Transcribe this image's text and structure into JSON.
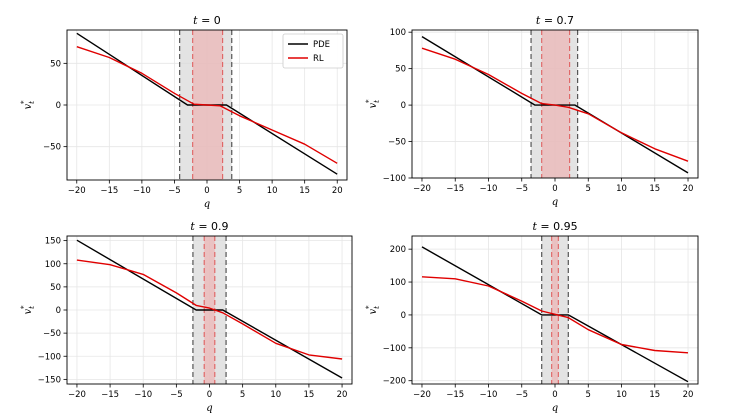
{
  "chart_data": [
    {
      "type": "line",
      "title": "t = 0",
      "xlabel": "q",
      "ylabel": "v_t*",
      "xlim": [
        -21.5,
        21.5
      ],
      "ylim": [
        -90,
        90
      ],
      "xticks": [
        -20,
        -15,
        -10,
        -5,
        0,
        5,
        10,
        15,
        20
      ],
      "yticks": [
        -50,
        0,
        50
      ],
      "grid": true,
      "legend": {
        "placement": "top-right",
        "entries": [
          "PDE",
          "RL"
        ]
      },
      "pde_band": [
        -4.2,
        3.8
      ],
      "rl_band": [
        -2.2,
        2.4
      ],
      "series": [
        {
          "name": "PDE",
          "color": "#000000",
          "x": [
            -20,
            -3,
            3,
            20
          ],
          "y": [
            86,
            0,
            0,
            -83
          ]
        },
        {
          "name": "RL",
          "color": "#e00000",
          "x": [
            -20,
            -15,
            -10,
            -5,
            -2,
            0,
            2,
            5,
            10,
            15,
            20
          ],
          "y": [
            70,
            57,
            38,
            14,
            1,
            0,
            -1,
            -13,
            -30,
            -47,
            -70
          ]
        }
      ]
    },
    {
      "type": "line",
      "title": "t = 0.7",
      "xlabel": "q",
      "ylabel": "v_t*",
      "xlim": [
        -21.5,
        21.5
      ],
      "ylim": [
        -100,
        103
      ],
      "xticks": [
        -20,
        -15,
        -10,
        -5,
        0,
        5,
        10,
        15,
        20
      ],
      "yticks": [
        -100,
        -50,
        0,
        50,
        100
      ],
      "grid": true,
      "pde_band": [
        -3.6,
        3.4
      ],
      "rl_band": [
        -2.0,
        2.2
      ],
      "series": [
        {
          "name": "PDE",
          "color": "#000000",
          "x": [
            -20,
            -3,
            3,
            20
          ],
          "y": [
            94,
            0,
            0,
            -93
          ]
        },
        {
          "name": "RL",
          "color": "#e00000",
          "x": [
            -20,
            -15,
            -10,
            -5,
            -2,
            0,
            2,
            5,
            10,
            15,
            20
          ],
          "y": [
            78,
            63,
            42,
            16,
            2,
            0,
            -3,
            -12,
            -38,
            -60,
            -77
          ]
        }
      ]
    },
    {
      "type": "line",
      "title": "t = 0.9",
      "xlabel": "q",
      "ylabel": "v_t*",
      "xlim": [
        -21.5,
        21.5
      ],
      "ylim": [
        -160,
        160
      ],
      "xticks": [
        -20,
        -15,
        -10,
        -5,
        0,
        5,
        10,
        15,
        20
      ],
      "yticks": [
        -150,
        -100,
        -50,
        0,
        50,
        100,
        150
      ],
      "grid": true,
      "pde_band": [
        -2.5,
        2.5
      ],
      "rl_band": [
        -0.8,
        0.8
      ],
      "series": [
        {
          "name": "PDE",
          "color": "#000000",
          "x": [
            -20,
            -2,
            2,
            20
          ],
          "y": [
            151,
            0,
            0,
            -147
          ]
        },
        {
          "name": "RL",
          "color": "#e00000",
          "x": [
            -20,
            -15,
            -10,
            -5,
            -2,
            0,
            2,
            5,
            10,
            15,
            20
          ],
          "y": [
            108,
            98,
            77,
            37,
            10,
            4,
            -6,
            -30,
            -72,
            -97,
            -106
          ]
        }
      ]
    },
    {
      "type": "line",
      "title": "t = 0.95",
      "xlabel": "q",
      "ylabel": "v_t*",
      "xlim": [
        -21.5,
        21.5
      ],
      "ylim": [
        -210,
        240
      ],
      "xticks": [
        -20,
        -15,
        -10,
        -5,
        0,
        5,
        10,
        15,
        20
      ],
      "yticks": [
        -200,
        -100,
        0,
        100,
        200
      ],
      "grid": true,
      "pde_band": [
        -2.0,
        2.0
      ],
      "rl_band": [
        -0.5,
        0.5
      ],
      "series": [
        {
          "name": "PDE",
          "color": "#000000",
          "x": [
            -20,
            -2,
            2,
            20
          ],
          "y": [
            207,
            0,
            0,
            -203
          ]
        },
        {
          "name": "RL",
          "color": "#e00000",
          "x": [
            -20,
            -15,
            -10,
            -5,
            -2,
            0,
            2,
            5,
            10,
            15,
            20
          ],
          "y": [
            116,
            110,
            88,
            42,
            12,
            2,
            -8,
            -45,
            -90,
            -108,
            -115
          ]
        }
      ]
    }
  ]
}
